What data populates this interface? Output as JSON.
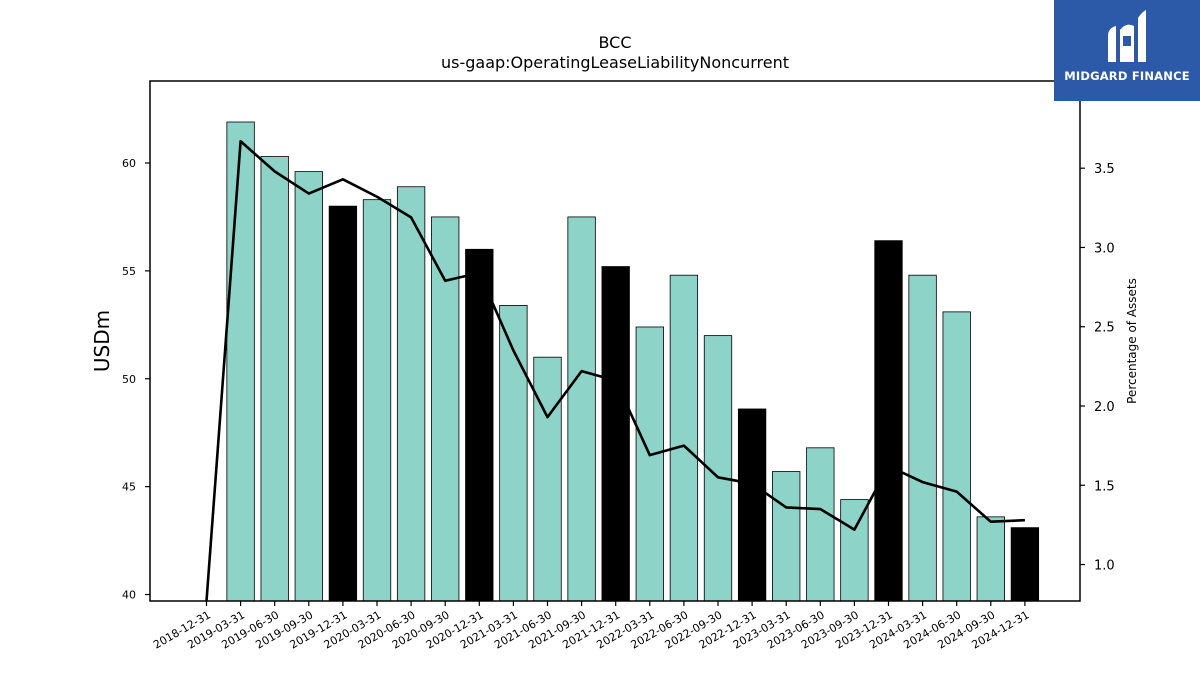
{
  "logo": {
    "text": "MIDGARD FINANCE"
  },
  "colors": {
    "bar": "#8dd3c7",
    "bar_highlight": "#000000",
    "line": "#000000",
    "logo_bg": "#2c5aa8"
  },
  "chart_data": {
    "type": "bar",
    "title": "BCC",
    "subtitle": "us-gaap:OperatingLeaseLiabilityNoncurrent",
    "ylabel": "USDm",
    "y2label": "Percentage of Assets",
    "ylim": [
      39.7,
      63.8
    ],
    "y2lim": [
      0.77,
      4.05
    ],
    "yticks": [
      40,
      45,
      50,
      55,
      60
    ],
    "y2ticks": [
      "1.0",
      "1.5",
      "2.0",
      "2.5",
      "3.0",
      "3.5"
    ],
    "categories": [
      "2018-12-31",
      "2019-03-31",
      "2019-06-30",
      "2019-09-30",
      "2019-12-31",
      "2020-03-31",
      "2020-06-30",
      "2020-09-30",
      "2020-12-31",
      "2021-03-31",
      "2021-06-30",
      "2021-09-30",
      "2021-12-31",
      "2022-03-31",
      "2022-06-30",
      "2022-09-30",
      "2022-12-31",
      "2023-03-31",
      "2023-06-30",
      "2023-09-30",
      "2023-12-31",
      "2024-03-31",
      "2024-06-30",
      "2024-09-30",
      "2024-12-31"
    ],
    "series": [
      {
        "type": "bar",
        "axis": "left",
        "values": [
          null,
          61.9,
          60.3,
          59.6,
          58.0,
          58.3,
          58.9,
          57.5,
          56.0,
          53.4,
          51.0,
          57.5,
          55.2,
          52.4,
          54.8,
          52.0,
          48.6,
          45.7,
          46.8,
          44.4,
          56.4,
          54.8,
          53.1,
          43.6,
          43.1
        ],
        "highlight": [
          false,
          false,
          false,
          false,
          true,
          false,
          false,
          false,
          true,
          false,
          false,
          false,
          true,
          false,
          false,
          false,
          true,
          false,
          false,
          false,
          true,
          false,
          false,
          false,
          true
        ]
      },
      {
        "type": "line",
        "axis": "right",
        "values": [
          0.77,
          3.67,
          3.48,
          3.34,
          3.43,
          3.32,
          3.19,
          2.79,
          2.84,
          2.35,
          1.93,
          2.22,
          2.16,
          1.69,
          1.75,
          1.55,
          1.51,
          1.36,
          1.35,
          1.22,
          1.62,
          1.52,
          1.46,
          1.27,
          1.28
        ]
      }
    ]
  }
}
